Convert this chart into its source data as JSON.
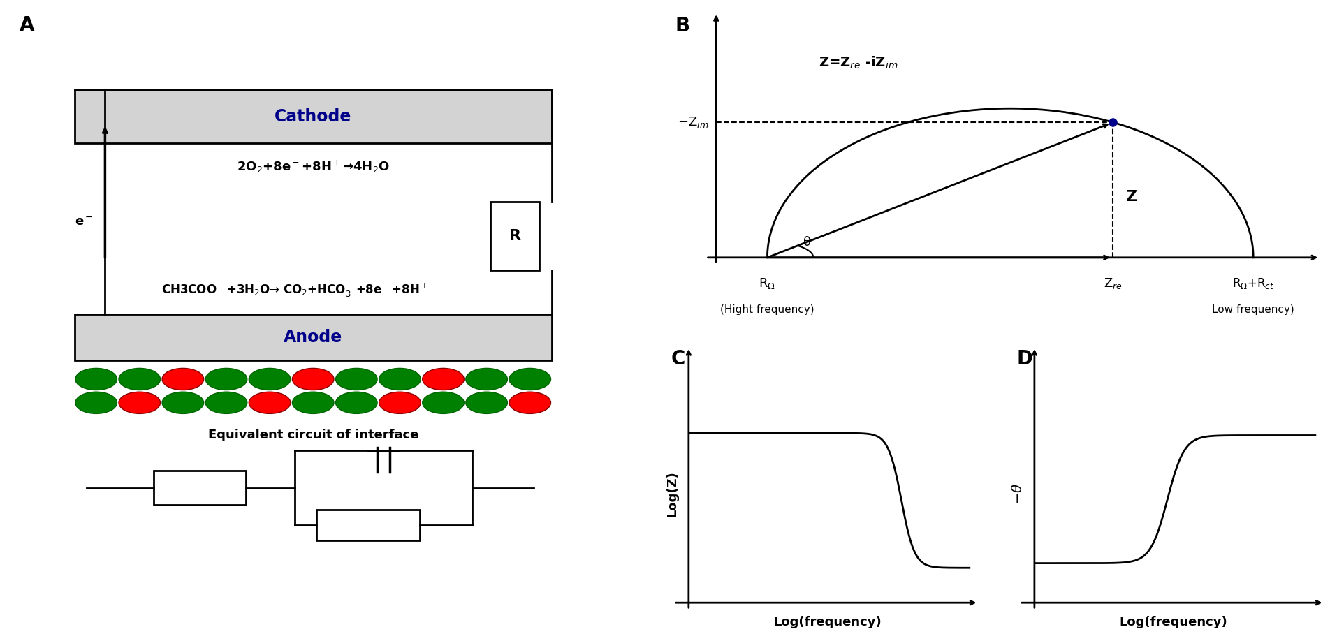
{
  "bg_color": "#ffffff",
  "cathode_color": "#d3d3d3",
  "anode_color": "#d3d3d3",
  "cathode_text": "Cathode",
  "anode_text": "Anode",
  "label_A": "A",
  "label_B": "B",
  "label_C": "C",
  "label_D": "D",
  "R_label": "R",
  "e_label": "e$^-$",
  "equiv_label": "Equivalent circuit of interface",
  "Z_eq_label": "Z=Z$_{re}$ -iZ$_{im}$",
  "neg_zim_label": "$-$Z$_{im}$",
  "Z_label": "Z",
  "theta_label": "θ",
  "R_omega_label": "R$_{Ω}$",
  "Z_re_label": "Z$_{re}$",
  "R_omega_Rct_label": "R$_{Ω}$+R$_{ct}$",
  "hight_freq_label": "(Hight frequency)",
  "low_freq_label": "Low frequency)",
  "logZ_label": "Log(Z)",
  "log_freq_label": "Log(frequency)",
  "neg_theta_label": "$-θ$",
  "blue_dot_color": "#00008B",
  "ellipse_green": "#2E8B22",
  "ellipse_red": "#CC1111",
  "wire_color": "#000000",
  "cathode_eq": "2O$_2$+8e$^-$+8H$^+$→4H$_2$O",
  "anode_eq": "CH3COO$^-$+3H$_2$O→ CO$_2$+HCO$_3^-$+8e$^-$+8H$^+$",
  "panel_A_label_fontsize": 20,
  "panel_B_label_fontsize": 20,
  "panel_C_label_fontsize": 20,
  "panel_D_label_fontsize": 20,
  "electrode_fontsize": 17,
  "eq_fontsize": 13,
  "anode_eq_fontsize": 12,
  "axis_label_fontsize": 13,
  "tick_label_fontsize": 12
}
